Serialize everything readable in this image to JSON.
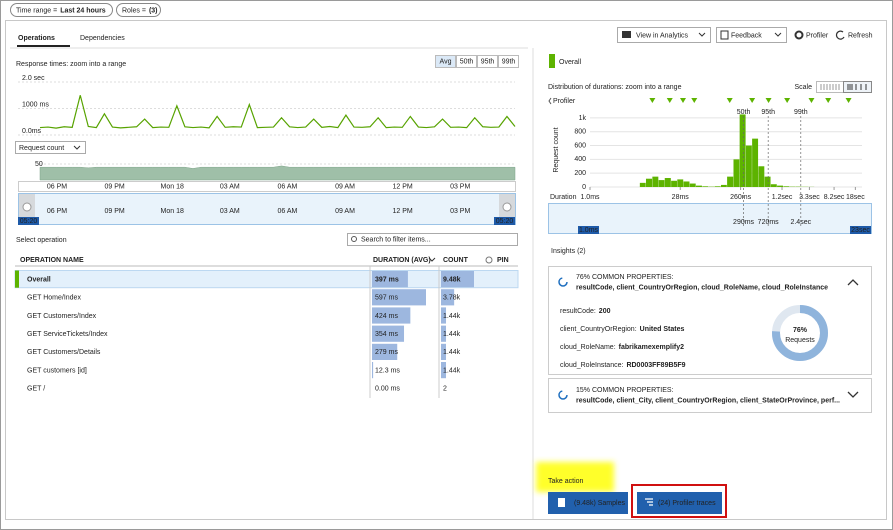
{
  "filters": [
    {
      "label": "Time range =",
      "value": "Last 24 hours"
    },
    {
      "label": "Roles =",
      "value": "(3)"
    }
  ],
  "tabs": [
    "Operations",
    "Dependencies"
  ],
  "toolbar": [
    "View in Analytics",
    "Feedback",
    "Profiler",
    "Refresh"
  ],
  "chart_data": [
    {
      "type": "line",
      "title": "Response times: zoom into a range",
      "aggregations": [
        "Avg",
        "50th",
        "95th",
        "99th"
      ],
      "ylim": [
        0,
        2000
      ],
      "yticks": [
        {
          "value": 0,
          "label": "0.0ms"
        },
        {
          "value": 1000,
          "label": "1000 ms"
        },
        {
          "value": 2000,
          "label": "2.0 sec"
        }
      ],
      "grid": true,
      "color": "#57a300",
      "values": [
        280,
        300,
        260,
        310,
        290,
        1500,
        320,
        280,
        800,
        300,
        270,
        290,
        310,
        600,
        280,
        300,
        290,
        1100,
        310,
        280,
        300,
        270,
        700,
        290,
        310,
        300,
        1150,
        280,
        290,
        300,
        650,
        310,
        280,
        300,
        600,
        290,
        320,
        280,
        750,
        300,
        290,
        310,
        650,
        280,
        300,
        290,
        700,
        300,
        280,
        310,
        600,
        290,
        300,
        280,
        650,
        310,
        290,
        300,
        700,
        320
      ]
    },
    {
      "type": "area",
      "title": "Request count",
      "ylim": [
        0,
        50
      ],
      "yticks": [
        50
      ],
      "color": "#9fbfa8",
      "values": [
        40,
        40,
        40,
        40,
        40,
        40,
        38,
        40,
        40,
        40,
        40,
        40,
        40,
        40,
        40,
        40,
        40,
        40,
        40,
        36,
        40,
        40,
        40,
        40,
        40,
        40,
        40,
        40,
        40,
        40,
        44,
        40,
        40,
        40,
        40,
        40,
        40,
        40,
        40,
        40,
        40,
        40,
        40,
        40,
        40,
        40,
        40,
        40,
        40,
        40,
        40,
        40,
        40,
        40,
        40,
        40,
        40,
        40,
        40,
        40
      ],
      "time_labels": [
        "06 PM",
        "09 PM",
        "Mon 18",
        "03 AM",
        "06 AM",
        "09 AM",
        "12 PM",
        "03 PM"
      ],
      "range_labels": [
        "05:20",
        "05:20"
      ]
    },
    {
      "type": "histogram",
      "label": "Overall",
      "title": "Distribution of durations: zoom into a range",
      "scale_label": "Scale",
      "xlabel": "Duration",
      "ylabel": "Request count",
      "log_x": true,
      "xlim": [
        {
          "value": 1,
          "label": "1.0ms"
        },
        {
          "value": 23000,
          "label": "23sec"
        }
      ],
      "xticks": [
        {
          "value": 1,
          "label": "1.0ms"
        },
        {
          "value": 28,
          "label": "28ms"
        },
        {
          "value": 260,
          "label": "260ms"
        },
        {
          "value": 1200,
          "label": "1.2sec"
        },
        {
          "value": 3300,
          "label": "3.3sec"
        },
        {
          "value": 8200,
          "label": "8.2sec"
        },
        {
          "value": 18000,
          "label": "18sec"
        }
      ],
      "ylim": [
        0,
        1100
      ],
      "yticks": [
        0,
        200,
        400,
        600,
        800,
        {
          "value": 1000,
          "label": "1k"
        }
      ],
      "grid": true,
      "color": "#5db300",
      "bins": [
        6.3,
        7.9,
        10,
        12.6,
        15.8,
        20,
        25.1,
        31.6,
        39.8,
        50.1,
        63.1,
        79.4,
        100,
        126,
        158,
        200,
        251,
        316,
        398,
        501,
        631,
        794,
        1000,
        1259,
        1585,
        1995,
        2512,
        3162,
        3981,
        5012,
        6310
      ],
      "counts": [
        60,
        120,
        150,
        100,
        130,
        90,
        110,
        80,
        50,
        20,
        10,
        5,
        10,
        30,
        150,
        400,
        1050,
        600,
        700,
        300,
        150,
        40,
        20,
        10,
        5,
        5,
        3,
        2,
        0,
        0
      ],
      "percentiles": [
        {
          "name": "50th",
          "value": 290,
          "label": "290ms"
        },
        {
          "name": "95th",
          "value": 720,
          "label": "720ms"
        },
        {
          "name": "99th",
          "value": 2400,
          "label": "2.4sec"
        }
      ],
      "profiler": {
        "label": "Profiler",
        "markers": [
          10,
          19,
          31,
          47,
          174,
          398,
          730,
          1450,
          3560,
          6600,
          14000
        ]
      }
    }
  ],
  "operations": {
    "title": "Select operation",
    "search_placeholder": "Search to filter items...",
    "columns": [
      "OPERATION NAME",
      "DURATION (AVG)",
      "COUNT",
      "PIN"
    ],
    "rows": [
      {
        "name": "Overall",
        "duration": {
          "value": 397,
          "label": "397 ms"
        },
        "count": {
          "value": 9480,
          "label": "9.48k"
        }
      },
      {
        "name": "GET Home/Index",
        "duration": {
          "value": 597,
          "label": "597 ms"
        },
        "count": {
          "value": 3780,
          "label": "3.78k"
        }
      },
      {
        "name": "GET Customers/Index",
        "duration": {
          "value": 424,
          "label": "424 ms"
        },
        "count": {
          "value": 1440,
          "label": "1.44k"
        }
      },
      {
        "name": "GET ServiceTickets/Index",
        "duration": {
          "value": 354,
          "label": "354 ms"
        },
        "count": {
          "value": 1440,
          "label": "1.44k"
        }
      },
      {
        "name": "GET Customers/Details",
        "duration": {
          "value": 279,
          "label": "279 ms"
        },
        "count": {
          "value": 1440,
          "label": "1.44k"
        }
      },
      {
        "name": "GET customers [id]",
        "duration": {
          "value": 12.3,
          "label": "12.3 ms"
        },
        "count": {
          "value": 1440,
          "label": "1.44k"
        }
      },
      {
        "name": "GET /",
        "duration": {
          "value": 0,
          "label": "0.00 ms"
        },
        "count": {
          "value": 2,
          "label": "2"
        }
      }
    ]
  },
  "insights": {
    "title": "Insights (2)",
    "cards": [
      {
        "header": "76% COMMON PROPERTIES:",
        "properties": "resultCode, client_CountryOrRegion, cloud_RoleName, cloud_RoleInstance",
        "details": [
          {
            "key": "resultCode:",
            "value": "200"
          },
          {
            "key": "client_CountryOrRegion:",
            "value": "United States"
          },
          {
            "key": "cloud_RoleName:",
            "value": "fabrikamexemplify2"
          },
          {
            "key": "cloud_RoleInstance:",
            "value": "RD0003FF89B5F9"
          }
        ],
        "donut": {
          "value": 76,
          "label": "76%",
          "caption": "Requests"
        }
      },
      {
        "header": "15% COMMON PROPERTIES:",
        "properties": "resultCode, client_City, client_CountryOrRegion, client_StateOrProvince, perf..."
      }
    ]
  },
  "actions": {
    "title": "Take action",
    "buttons": [
      "(9.48k) Samples",
      "(24) Profiler traces"
    ]
  }
}
